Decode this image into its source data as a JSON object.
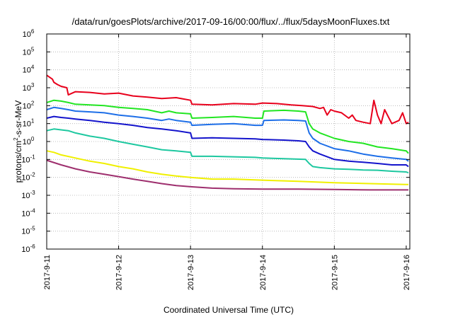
{
  "chart_data": {
    "type": "line",
    "title": "/data/run/goesPlots/archive/2017-09-16/00:00/flux/../flux/5daysMoonFluxes.txt",
    "xlabel": "Coordinated Universal Time (UTC)",
    "ylabel": {
      "base": "protons/cm",
      "sup": "2",
      "rest": "-s-sr-MeV"
    },
    "log_y": true,
    "ylim_exp": [
      -6,
      6
    ],
    "y_ticks": [
      {
        "base": "10",
        "exp": "-6",
        "e": -6
      },
      {
        "base": "10",
        "exp": "-5",
        "e": -5
      },
      {
        "base": "10",
        "exp": "-4",
        "e": -4
      },
      {
        "base": "10",
        "exp": "-3",
        "e": -3
      },
      {
        "base": "10",
        "exp": "-2",
        "e": -2
      },
      {
        "base": "10",
        "exp": "-1",
        "e": -1
      },
      {
        "base": "10",
        "exp": "0",
        "e": 0
      },
      {
        "base": "10",
        "exp": "1",
        "e": 1
      },
      {
        "base": "10",
        "exp": "2",
        "e": 2
      },
      {
        "base": "10",
        "exp": "3",
        "e": 3
      },
      {
        "base": "10",
        "exp": "4",
        "e": 4
      },
      {
        "base": "10",
        "exp": "5",
        "e": 5
      },
      {
        "base": "10",
        "exp": "6",
        "e": 6
      }
    ],
    "x_ticks": [
      "2017-9-11",
      "2017-9-12",
      "2017-9-13",
      "2017-9-14",
      "2017-9-15",
      "2017-9-16"
    ],
    "xlim_days": [
      0,
      5.05
    ],
    "grid": true,
    "series": [
      {
        "color": "#e8001c",
        "x": [
          0,
          0.08,
          0.1,
          0.15,
          0.2,
          0.28,
          0.3,
          0.4,
          0.6,
          0.8,
          1.0,
          1.2,
          1.4,
          1.6,
          1.8,
          2.0,
          2.02,
          2.3,
          2.6,
          2.9,
          3.0,
          3.2,
          3.4,
          3.55,
          3.7,
          3.8,
          3.85,
          3.9,
          3.95,
          4.0,
          4.1,
          4.2,
          4.25,
          4.3,
          4.4,
          4.5,
          4.55,
          4.6,
          4.65,
          4.7,
          4.8,
          4.9,
          4.95,
          5.0,
          5.03
        ],
        "y": [
          5000,
          3000,
          2000,
          1500,
          1200,
          1000,
          400,
          600,
          550,
          450,
          500,
          350,
          300,
          250,
          280,
          200,
          120,
          110,
          130,
          120,
          140,
          130,
          110,
          100,
          90,
          70,
          80,
          30,
          60,
          50,
          40,
          20,
          30,
          15,
          12,
          10,
          200,
          30,
          10,
          60,
          10,
          15,
          40,
          10,
          12
        ]
      },
      {
        "color": "#22e622",
        "x": [
          0,
          0.1,
          0.2,
          0.3,
          0.4,
          0.6,
          0.8,
          1.0,
          1.2,
          1.4,
          1.6,
          1.7,
          1.8,
          2.0,
          2.02,
          2.3,
          2.6,
          2.9,
          3.0,
          3.02,
          3.3,
          3.5,
          3.6,
          3.65,
          3.7,
          3.8,
          4.0,
          4.2,
          4.4,
          4.6,
          4.8,
          5.0,
          5.03
        ],
        "y": [
          150,
          200,
          180,
          150,
          120,
          110,
          100,
          80,
          70,
          60,
          40,
          50,
          40,
          35,
          20,
          22,
          25,
          20,
          20,
          50,
          55,
          50,
          45,
          10,
          5,
          3,
          1.5,
          1,
          0.8,
          0.5,
          0.4,
          0.3,
          0.22
        ]
      },
      {
        "color": "#1e6fe8",
        "x": [
          0,
          0.1,
          0.2,
          0.3,
          0.4,
          0.6,
          0.8,
          1.0,
          1.2,
          1.4,
          1.6,
          1.7,
          1.8,
          2.0,
          2.02,
          2.3,
          2.6,
          2.9,
          3.0,
          3.02,
          3.3,
          3.5,
          3.6,
          3.65,
          3.7,
          3.8,
          4.0,
          4.2,
          4.4,
          4.6,
          4.8,
          5.0,
          5.03
        ],
        "y": [
          60,
          80,
          70,
          60,
          50,
          45,
          40,
          30,
          25,
          20,
          15,
          18,
          15,
          12,
          8,
          9,
          10,
          8,
          8,
          15,
          16,
          15,
          14,
          3,
          1.5,
          0.8,
          0.4,
          0.3,
          0.2,
          0.15,
          0.12,
          0.1,
          0.08
        ]
      },
      {
        "color": "#1414cc",
        "x": [
          0,
          0.1,
          0.2,
          0.3,
          0.4,
          0.6,
          0.8,
          1.0,
          1.2,
          1.4,
          1.6,
          1.8,
          2.0,
          2.02,
          2.3,
          2.6,
          2.9,
          3.0,
          3.3,
          3.5,
          3.6,
          3.65,
          3.7,
          3.8,
          4.0,
          4.2,
          4.4,
          4.6,
          4.8,
          5.0,
          5.03
        ],
        "y": [
          20,
          25,
          22,
          20,
          18,
          15,
          12,
          10,
          8,
          6,
          5,
          4,
          3,
          1.5,
          1.6,
          1.5,
          1.4,
          1.3,
          1.2,
          1.1,
          1.0,
          0.5,
          0.3,
          0.2,
          0.1,
          0.08,
          0.07,
          0.06,
          0.05,
          0.05,
          0.04
        ]
      },
      {
        "color": "#1ec8a0",
        "x": [
          0,
          0.1,
          0.2,
          0.3,
          0.4,
          0.6,
          0.8,
          1.0,
          1.2,
          1.4,
          1.6,
          1.8,
          2.0,
          2.02,
          2.3,
          2.6,
          2.9,
          3.0,
          3.3,
          3.6,
          3.65,
          3.7,
          3.8,
          4.0,
          4.2,
          4.4,
          4.6,
          4.8,
          5.0,
          5.03
        ],
        "y": [
          4,
          5,
          4.5,
          4,
          3,
          2,
          1.5,
          1,
          0.7,
          0.5,
          0.35,
          0.3,
          0.25,
          0.15,
          0.15,
          0.14,
          0.13,
          0.12,
          0.11,
          0.1,
          0.06,
          0.04,
          0.035,
          0.03,
          0.028,
          0.026,
          0.025,
          0.022,
          0.02,
          0.018
        ]
      },
      {
        "color": "#f0f000",
        "x": [
          0,
          0.1,
          0.2,
          0.4,
          0.6,
          0.8,
          1.0,
          1.2,
          1.4,
          1.6,
          1.8,
          2.0,
          2.3,
          2.6,
          3.0,
          3.5,
          4.0,
          4.5,
          5.0,
          5.03
        ],
        "y": [
          0.3,
          0.25,
          0.18,
          0.12,
          0.08,
          0.06,
          0.04,
          0.03,
          0.02,
          0.015,
          0.012,
          0.01,
          0.008,
          0.008,
          0.007,
          0.006,
          0.005,
          0.0045,
          0.004,
          0.004
        ]
      },
      {
        "color": "#9e2f6e",
        "x": [
          0,
          0.2,
          0.4,
          0.6,
          0.8,
          1.0,
          1.2,
          1.4,
          1.6,
          1.8,
          2.0,
          2.3,
          2.6,
          3.0,
          3.5,
          4.0,
          4.5,
          5.0,
          5.03
        ],
        "y": [
          0.09,
          0.05,
          0.03,
          0.02,
          0.015,
          0.011,
          0.008,
          0.006,
          0.0045,
          0.0035,
          0.003,
          0.0025,
          0.0023,
          0.0022,
          0.0022,
          0.0021,
          0.002,
          0.002,
          0.002
        ]
      }
    ]
  }
}
